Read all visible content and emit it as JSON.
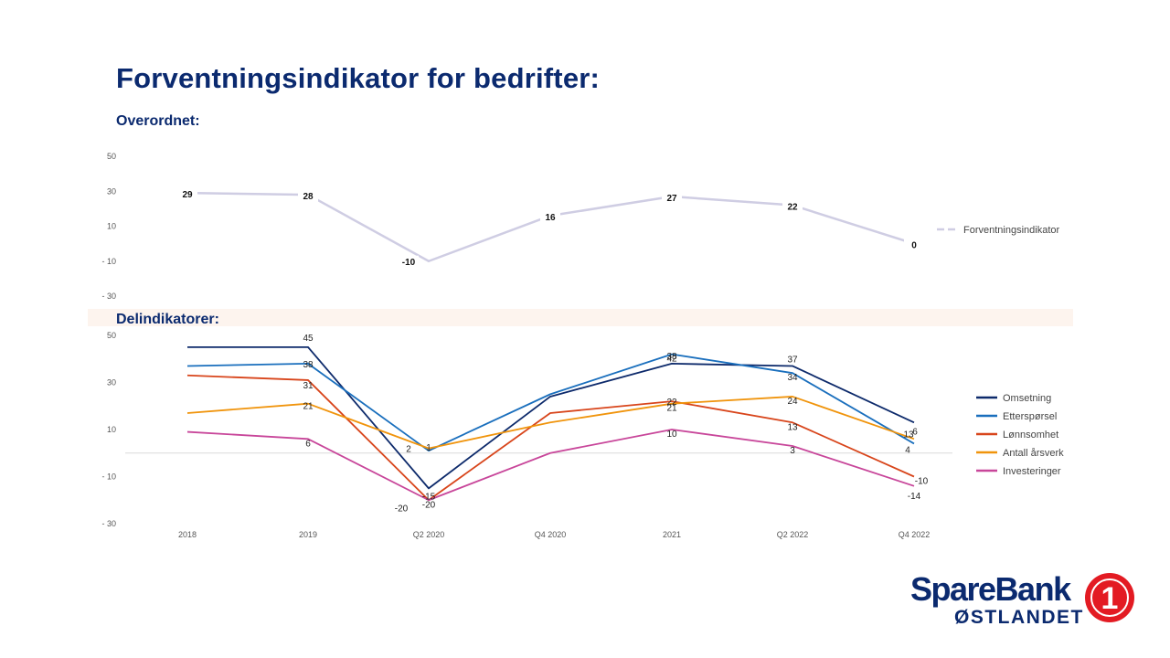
{
  "title": "Forventningsindikator for bedrifter:",
  "section_overall": "Overordnet:",
  "section_sub": "Delindikatorer:",
  "colors": {
    "title": "#0b2a6f",
    "overall_line": "#cfcde3",
    "band": "#fdf4ee",
    "logo_red": "#e31b23",
    "logo_navy": "#0b2a6f"
  },
  "chart_data": [
    {
      "type": "line",
      "title": "Overordnet:",
      "categories": [
        "2018",
        "2019",
        "Q2 2020",
        "Q4 2020",
        "2021",
        "Q2 2022",
        "Q4 2022"
      ],
      "series": [
        {
          "name": "Forventningsindikator",
          "color": "#cfcde3",
          "dashed_legend": true,
          "values": [
            29,
            28,
            -10,
            16,
            27,
            22,
            0
          ],
          "labels": [
            "29",
            "28",
            "-10",
            "16",
            "27",
            "22",
            "0"
          ]
        }
      ],
      "yticks": [
        50,
        30,
        10,
        -10,
        -30
      ],
      "ytick_labels": [
        "50",
        "30",
        "10",
        "- 10",
        "- 30"
      ],
      "ylim": [
        -30,
        50
      ],
      "show_x_labels": false,
      "legend_position": "right"
    },
    {
      "type": "line",
      "title": "Delindikatorer:",
      "categories": [
        "2018",
        "2019",
        "Q2 2020",
        "Q4 2020",
        "2021",
        "Q2 2022",
        "Q4 2022"
      ],
      "series": [
        {
          "name": "Omsetning",
          "color": "#0d2a6b",
          "values": [
            45,
            45,
            -15,
            24,
            38,
            37,
            13
          ],
          "labels": [
            "",
            "45",
            "-15",
            "",
            "38",
            "37",
            "13"
          ]
        },
        {
          "name": "Etterspørsel",
          "color": "#1a6fbd",
          "values": [
            37,
            38,
            1,
            25,
            42,
            34,
            4
          ],
          "labels": [
            "",
            "38",
            "1",
            "",
            "42",
            "34",
            "4"
          ]
        },
        {
          "name": "Lønnsomhet",
          "color": "#d8451b",
          "values": [
            33,
            31,
            -20,
            17,
            22,
            13,
            -10
          ],
          "labels": [
            "",
            "31",
            "-20",
            "",
            "22",
            "13",
            "-10"
          ]
        },
        {
          "name": "Antall årsverk",
          "color": "#f0940c",
          "values": [
            17,
            21,
            2,
            13,
            21,
            24,
            6
          ],
          "labels": [
            "",
            "21",
            "2",
            "",
            "21",
            "24",
            "6"
          ]
        },
        {
          "name": "Investeringer",
          "color": "#c8469a",
          "values": [
            9,
            6,
            -20,
            0,
            10,
            3,
            -14
          ],
          "labels": [
            "",
            "6",
            "-20",
            "",
            "10",
            "3",
            "-14"
          ]
        }
      ],
      "yticks": [
        50,
        30,
        10,
        -10,
        -30
      ],
      "ytick_labels": [
        "50",
        "30",
        "10",
        "- 10",
        "- 30"
      ],
      "ylim": [
        -30,
        50
      ],
      "show_x_labels": true,
      "zero_line": true,
      "legend_position": "right"
    }
  ],
  "logo": {
    "line1": "SpareBank",
    "line2": "ØSTLANDET",
    "badge_text": "1"
  }
}
